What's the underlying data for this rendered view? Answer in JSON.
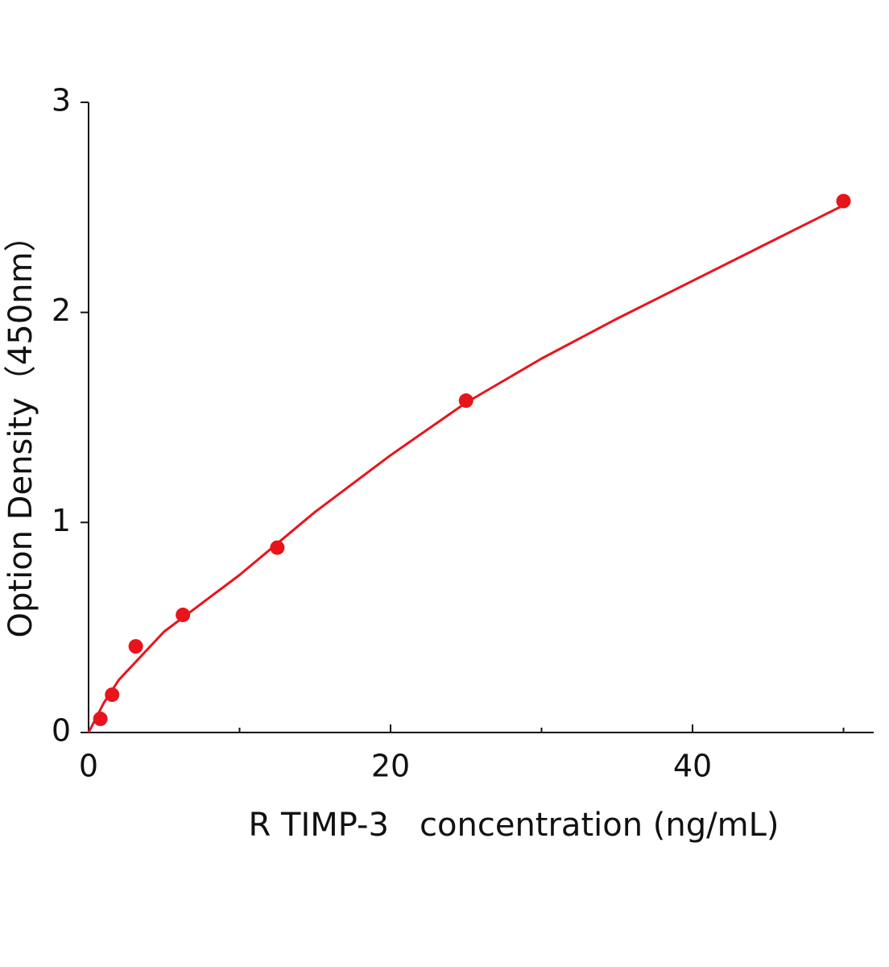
{
  "chart_data": {
    "type": "scatter",
    "xlabel": "R TIMP-3   concentration (ng/mL)",
    "ylabel": "Option Density（450nm）",
    "xlim": [
      0,
      52
    ],
    "ylim": [
      0,
      3
    ],
    "xticks": [
      0,
      20,
      40
    ],
    "xminor_ticks": [
      10,
      30,
      50
    ],
    "yticks": [
      0,
      1,
      2,
      3
    ],
    "series": [
      {
        "kind": "points",
        "color": "#e8141c",
        "x": [
          0.78,
          1.56,
          3.125,
          6.25,
          12.5,
          25,
          50
        ],
        "values": [
          0.065,
          0.18,
          0.41,
          0.56,
          0.88,
          1.58,
          2.53
        ]
      },
      {
        "kind": "curve",
        "color": "#e8141c",
        "x": [
          0,
          1,
          2,
          5,
          10,
          15,
          20,
          25,
          30,
          35,
          40,
          45,
          50
        ],
        "values": [
          0,
          0.14,
          0.25,
          0.48,
          0.75,
          1.05,
          1.32,
          1.57,
          1.78,
          1.97,
          2.15,
          2.33,
          2.51
        ]
      }
    ]
  }
}
